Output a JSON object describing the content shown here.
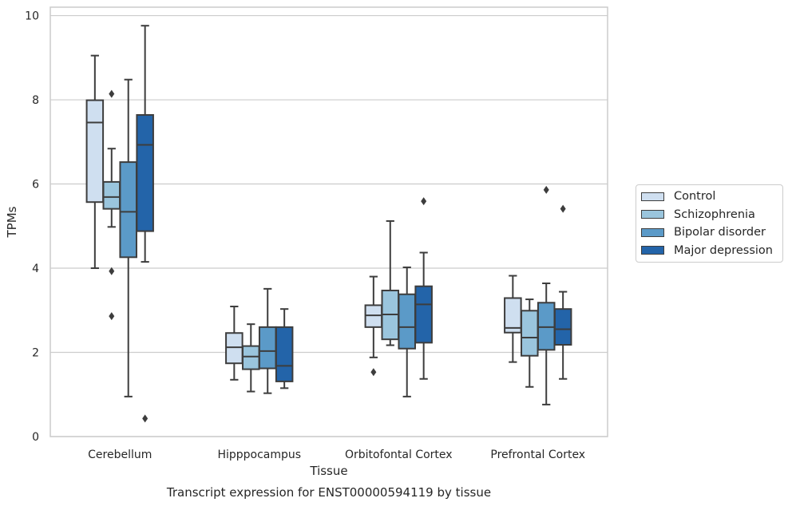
{
  "chart_data": {
    "type": "boxplot",
    "title": "Transcript expression for ENST00000594119 by tissue",
    "xlabel": "Tissue",
    "ylabel": "TPMs",
    "ylim": [
      0,
      10.2
    ],
    "yticks": [
      0,
      2,
      4,
      6,
      8,
      10
    ],
    "grid": "horizontal",
    "legend_position": "right",
    "categories": [
      "Cerebellum",
      "Hipppocampus",
      "Orbitofontal Cortex",
      "Prefrontal Cortex"
    ],
    "series": [
      {
        "name": "Control",
        "color": "#cfdff0",
        "boxes": [
          {
            "whislo": 4.0,
            "q1": 5.57,
            "med": 7.46,
            "q3": 7.99,
            "whishi": 9.05,
            "fliers": []
          },
          {
            "whislo": 1.35,
            "q1": 1.74,
            "med": 2.12,
            "q3": 2.46,
            "whishi": 3.09,
            "fliers": []
          },
          {
            "whislo": 1.88,
            "q1": 2.6,
            "med": 2.88,
            "q3": 3.12,
            "whishi": 3.8,
            "fliers": [
              1.53
            ]
          },
          {
            "whislo": 1.77,
            "q1": 2.47,
            "med": 2.58,
            "q3": 3.29,
            "whishi": 3.82,
            "fliers": []
          }
        ]
      },
      {
        "name": "Schizophrenia",
        "color": "#9ac5dd",
        "boxes": [
          {
            "whislo": 4.98,
            "q1": 5.41,
            "med": 5.69,
            "q3": 6.05,
            "whishi": 6.84,
            "fliers": [
              8.14,
              3.93,
              2.86
            ]
          },
          {
            "whislo": 1.07,
            "q1": 1.6,
            "med": 1.9,
            "q3": 2.15,
            "whishi": 2.67,
            "fliers": []
          },
          {
            "whislo": 2.17,
            "q1": 2.31,
            "med": 2.9,
            "q3": 3.47,
            "whishi": 5.12,
            "fliers": []
          },
          {
            "whislo": 1.18,
            "q1": 1.92,
            "med": 2.35,
            "q3": 2.99,
            "whishi": 3.26,
            "fliers": []
          }
        ]
      },
      {
        "name": "Bipolar disorder",
        "color": "#5b9ac8",
        "boxes": [
          {
            "whislo": 0.95,
            "q1": 4.26,
            "med": 5.34,
            "q3": 6.52,
            "whishi": 8.48,
            "fliers": []
          },
          {
            "whislo": 1.03,
            "q1": 1.62,
            "med": 2.03,
            "q3": 2.6,
            "whishi": 3.51,
            "fliers": []
          },
          {
            "whislo": 0.95,
            "q1": 2.09,
            "med": 2.6,
            "q3": 3.38,
            "whishi": 4.02,
            "fliers": []
          },
          {
            "whislo": 0.76,
            "q1": 2.06,
            "med": 2.6,
            "q3": 3.18,
            "whishi": 3.64,
            "fliers": [
              5.86
            ]
          }
        ]
      },
      {
        "name": "Major depression",
        "color": "#2364a9",
        "boxes": [
          {
            "whislo": 4.15,
            "q1": 4.88,
            "med": 6.93,
            "q3": 7.64,
            "whishi": 9.76,
            "fliers": [
              0.43
            ]
          },
          {
            "whislo": 1.15,
            "q1": 1.31,
            "med": 1.68,
            "q3": 2.6,
            "whishi": 3.03,
            "fliers": []
          },
          {
            "whislo": 1.37,
            "q1": 2.23,
            "med": 3.14,
            "q3": 3.57,
            "whishi": 4.37,
            "fliers": [
              5.59
            ]
          },
          {
            "whislo": 1.37,
            "q1": 2.18,
            "med": 2.55,
            "q3": 3.03,
            "whishi": 3.44,
            "fliers": [
              5.41
            ]
          }
        ]
      }
    ]
  },
  "legend": {
    "items": [
      {
        "label": "Control",
        "color": "#cfdff0"
      },
      {
        "label": "Schizophrenia",
        "color": "#9ac5dd"
      },
      {
        "label": "Bipolar disorder",
        "color": "#5b9ac8"
      },
      {
        "label": "Major depression",
        "color": "#2364a9"
      }
    ]
  }
}
